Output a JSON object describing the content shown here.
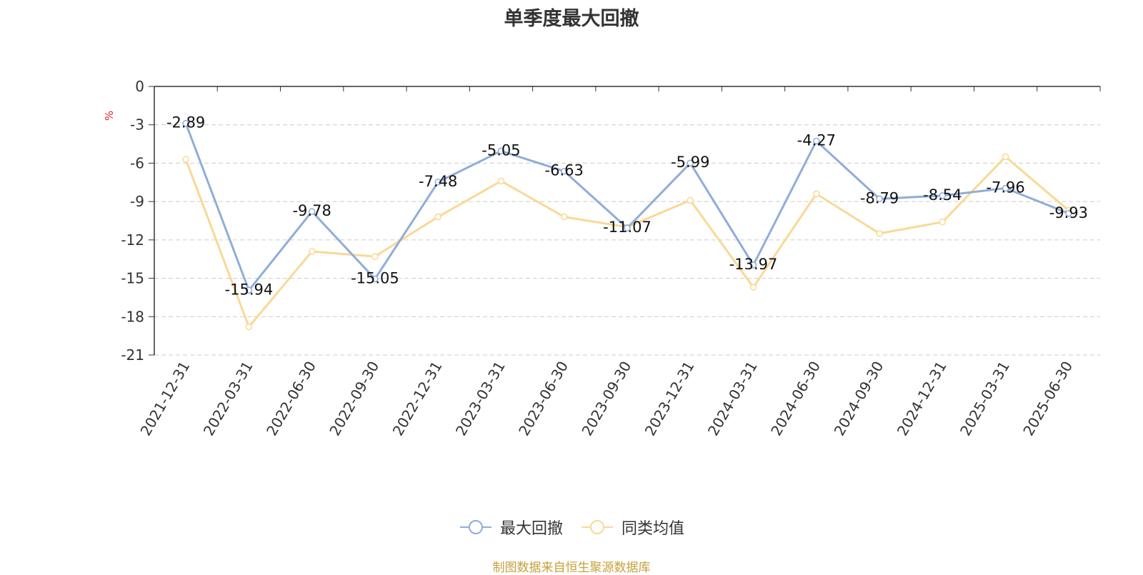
{
  "chart_data": {
    "type": "line",
    "title": "单季度最大回撤",
    "ylabel": "%",
    "xlabel": "",
    "ylim": [
      -21,
      0
    ],
    "yticks": [
      0,
      -3,
      -6,
      -9,
      -12,
      -15,
      -18,
      -21
    ],
    "grid": true,
    "legend_position": "bottom",
    "categories": [
      "2021-12-31",
      "2022-03-31",
      "2022-06-30",
      "2022-09-30",
      "2022-12-31",
      "2023-03-31",
      "2023-06-30",
      "2023-09-30",
      "2023-12-31",
      "2024-03-31",
      "2024-06-30",
      "2024-09-30",
      "2024-12-31",
      "2025-03-31",
      "2025-06-30"
    ],
    "series": [
      {
        "name": "最大回撤",
        "color": "#8fadd8",
        "labeled": true,
        "values": [
          -2.89,
          -15.94,
          -9.78,
          -15.05,
          -7.48,
          -5.05,
          -6.63,
          -11.07,
          -5.99,
          -13.97,
          -4.27,
          -8.79,
          -8.54,
          -7.96,
          -9.93
        ]
      },
      {
        "name": "同类均值",
        "color": "#fad896",
        "labeled": false,
        "values": [
          -5.7,
          -18.8,
          -12.9,
          -13.3,
          -10.2,
          -7.4,
          -10.2,
          -11.0,
          -8.9,
          -15.7,
          -8.4,
          -11.5,
          -10.6,
          -5.5,
          -9.7
        ]
      }
    ]
  },
  "colors": {
    "ylabel": "#e0242a",
    "source": "#c8a03c"
  },
  "source_text": "制图数据来自恒生聚源数据库"
}
